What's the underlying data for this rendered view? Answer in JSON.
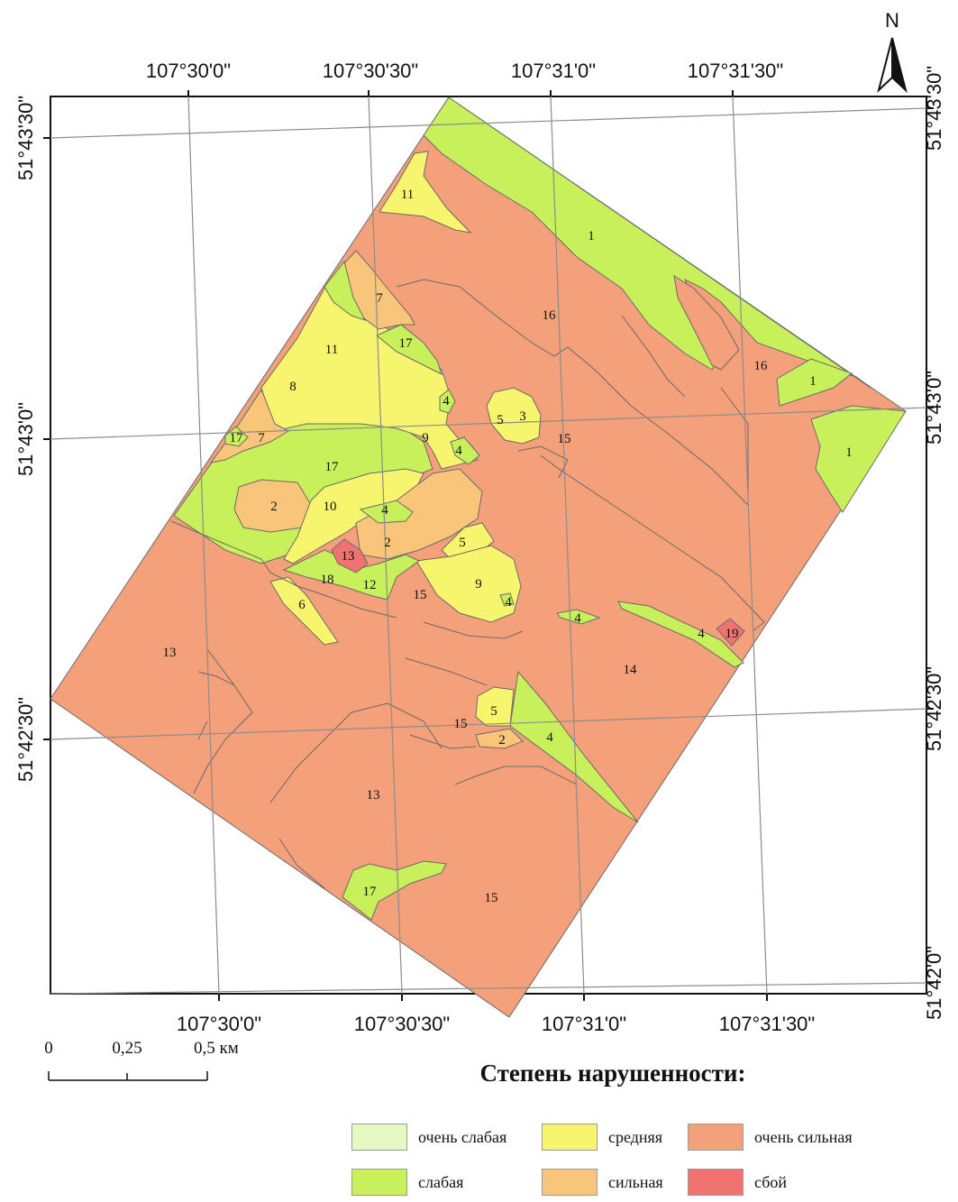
{
  "map": {
    "north_label": "N",
    "top_lon_labels": [
      "107°30'0\"",
      "107°30'30\"",
      "107°31'0\"",
      "107°31'30\""
    ],
    "bottom_lon_labels": [
      "107°30'0\"",
      "107°30'30\"",
      "107°31'0\"",
      "107°31'30\""
    ],
    "left_lat_labels": [
      "51°43'30\"",
      "51°43'0\"",
      "51°42'30\""
    ],
    "right_lat_labels": [
      "51°43'30\"",
      "51°43'0\"",
      "51°42'30\"",
      "51°42'0\""
    ],
    "colors": {
      "very_weak": "#e6f9c2",
      "weak": "#c7f05a",
      "medium": "#f7f56e",
      "strong": "#f8c57a",
      "very_strong": "#f4a07a",
      "failure": "#f07372"
    },
    "zone_labels": [
      "1",
      "1",
      "1",
      "16",
      "16",
      "11",
      "7",
      "17",
      "11",
      "8",
      "4",
      "9",
      "5",
      "3",
      "15",
      "17",
      "7",
      "17",
      "4",
      "2",
      "10",
      "4",
      "2",
      "5",
      "13",
      "18",
      "12",
      "15",
      "9",
      "4",
      "4",
      "6",
      "4",
      "19",
      "13",
      "14",
      "5",
      "15",
      "2",
      "4",
      "13",
      "17",
      "15"
    ]
  },
  "scale": {
    "label_0": "0",
    "label_mid": "0,25",
    "label_end": "0,5 км"
  },
  "legend": {
    "title": "Степень нарушенности:",
    "items": [
      {
        "label": "очень слабая",
        "color": "#e6f9c2"
      },
      {
        "label": "слабая",
        "color": "#c7f05a"
      },
      {
        "label": "средняя",
        "color": "#f7f56e"
      },
      {
        "label": "сильная",
        "color": "#f8c57a"
      },
      {
        "label": "очень сильная",
        "color": "#f4a07a"
      },
      {
        "label": "сбой",
        "color": "#f07372"
      }
    ]
  }
}
